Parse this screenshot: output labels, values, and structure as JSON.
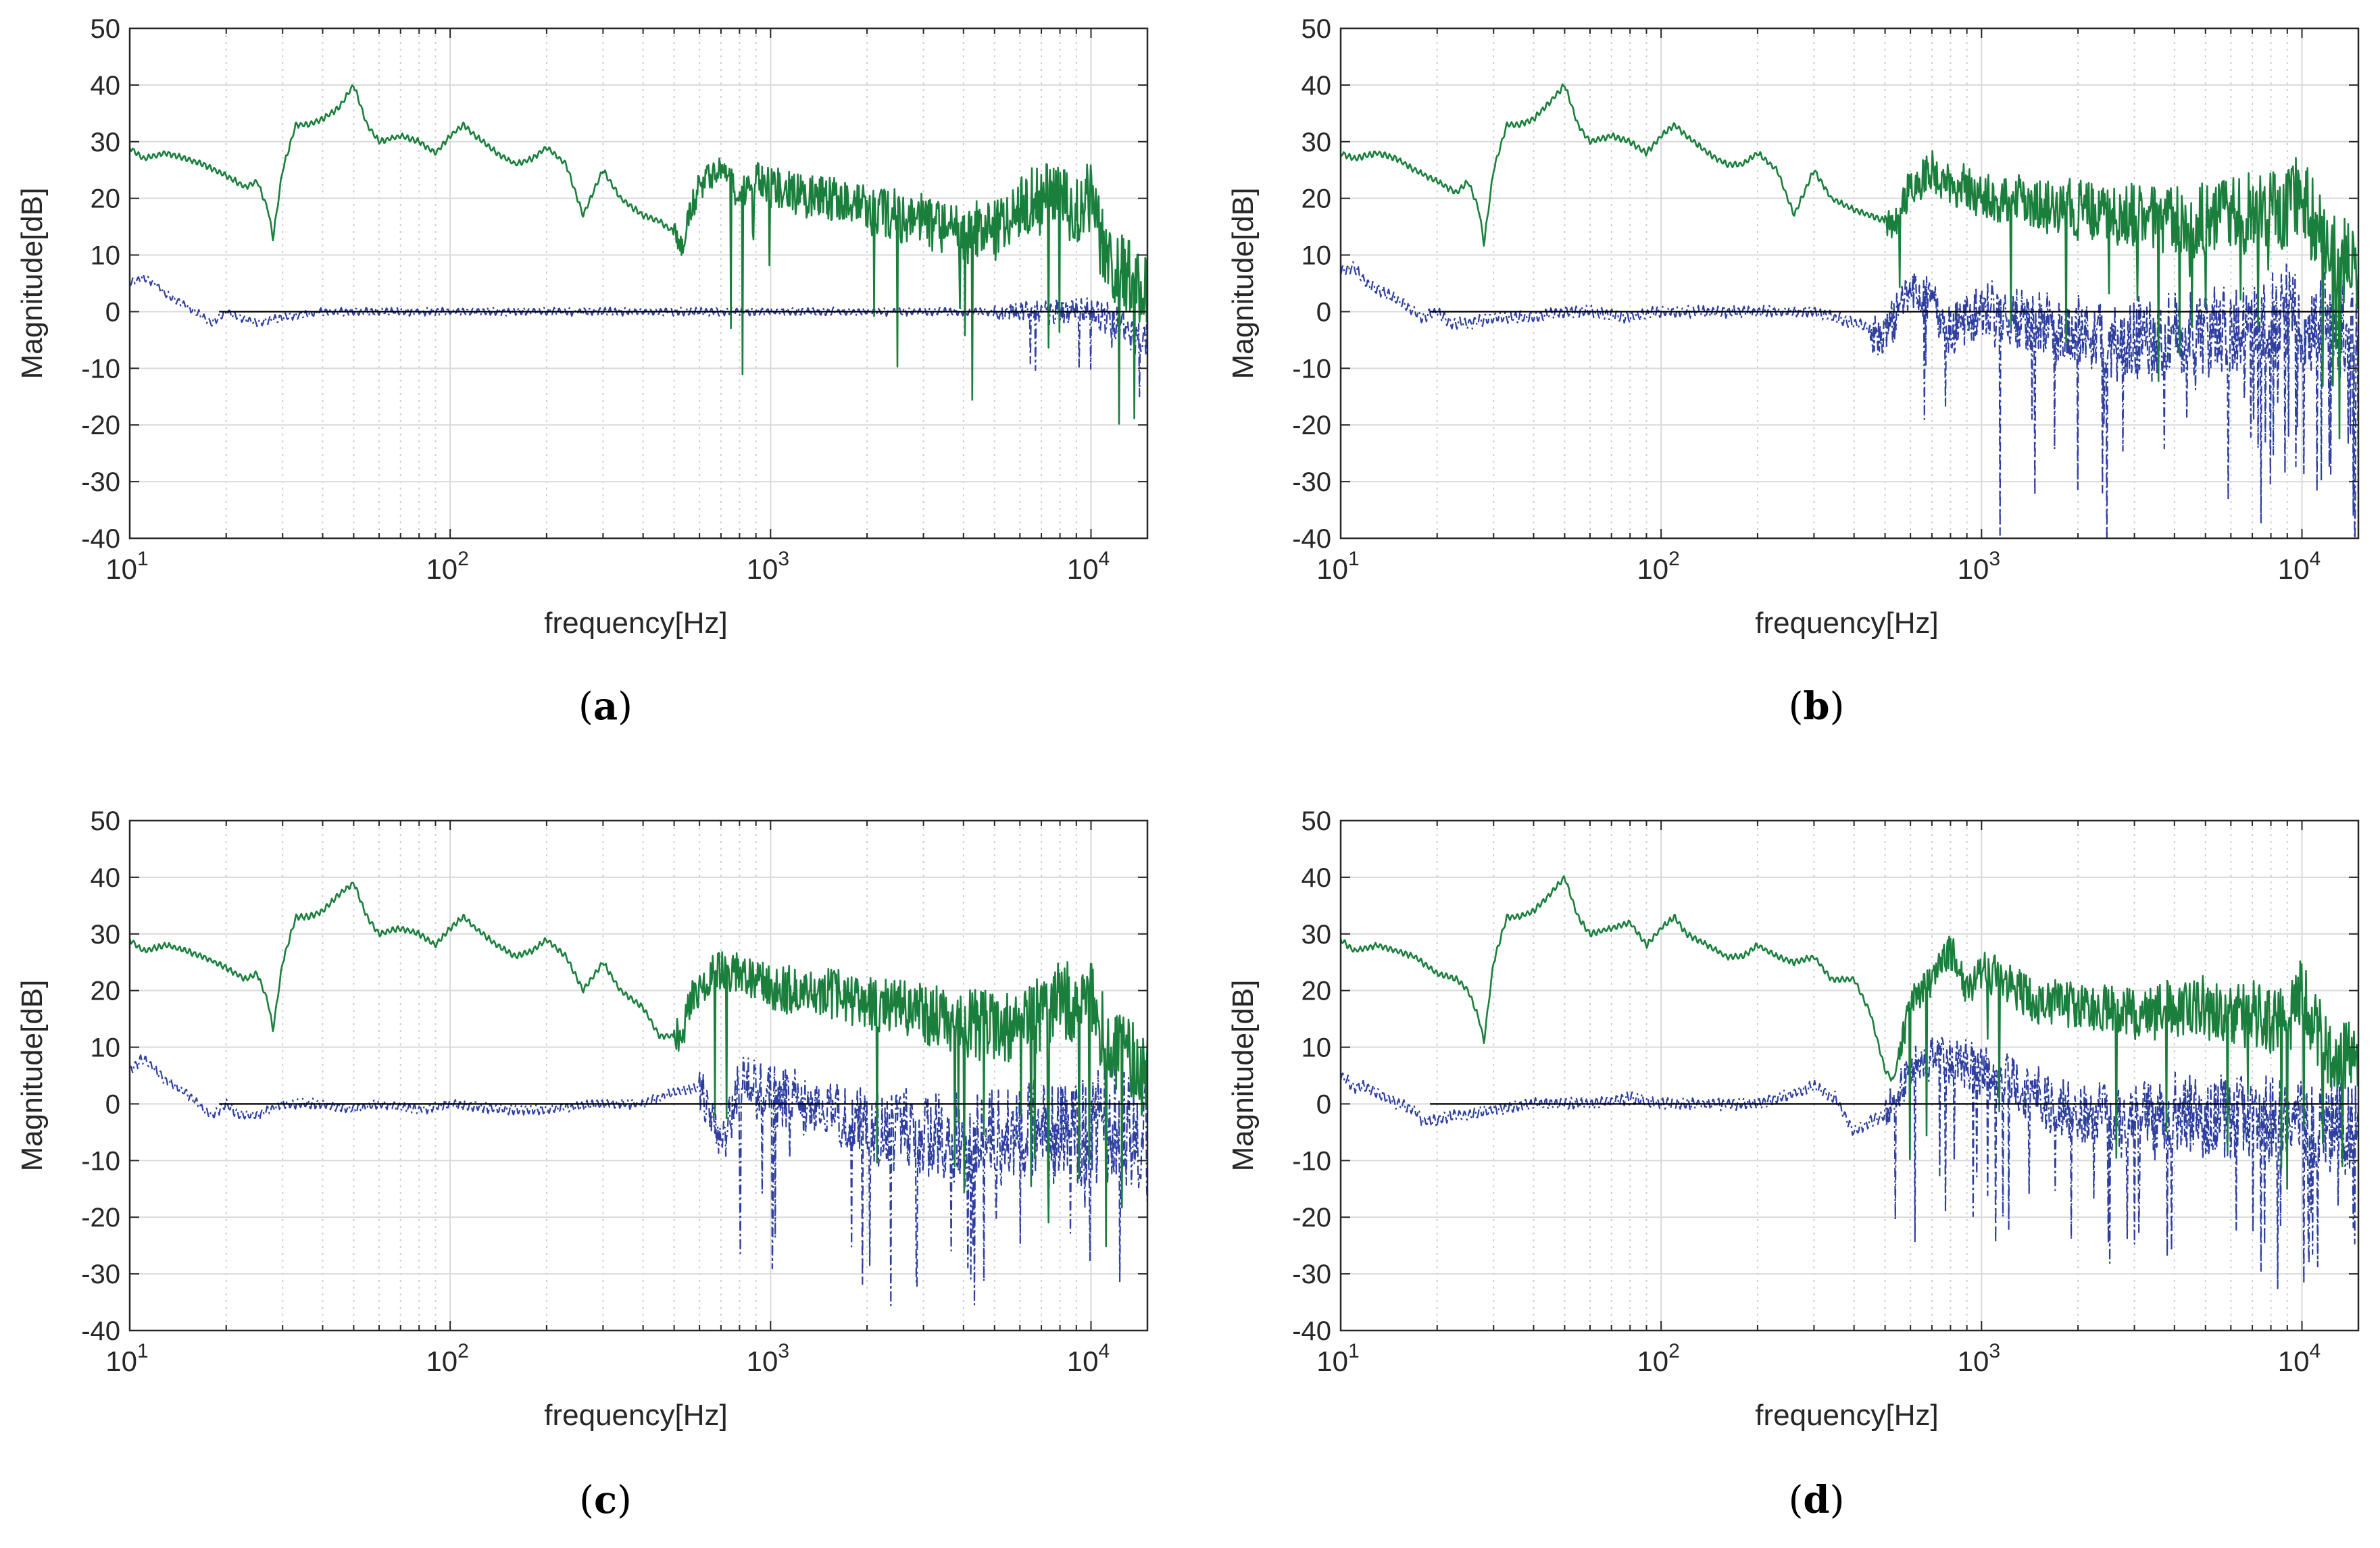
{
  "colors": {
    "green": "#1a7f3c",
    "blue": "#2e3fa0",
    "zero_line": "#000000",
    "grid_major": "#d9d9d9",
    "grid_minor": "#cfcfcf",
    "axes": "#262626"
  },
  "chart_data": [
    {
      "panel": "a",
      "type": "line",
      "caption_letter": "a",
      "xlabel": "frequency[Hz]",
      "ylabel": "Magnitude[dB]",
      "xscale": "log",
      "xlim": [
        10,
        15000
      ],
      "ylim": [
        -40,
        50
      ],
      "yticks": [
        -40,
        -30,
        -20,
        -10,
        0,
        10,
        20,
        30,
        40,
        50
      ],
      "xtick_labels": [
        {
          "base": "10",
          "exp": "1"
        },
        {
          "base": "10",
          "exp": "2"
        },
        {
          "base": "10",
          "exp": "3"
        },
        {
          "base": "10",
          "exp": "4"
        }
      ],
      "grid": true,
      "zero_line_x_start": 19,
      "series": [
        {
          "name": "green",
          "style": "solid",
          "seed": 11,
          "osc": 0.15,
          "x": [
            10,
            11,
            13,
            15,
            17,
            20,
            23,
            25,
            27,
            28,
            30,
            33,
            36,
            40,
            45,
            50,
            55,
            60,
            70,
            80,
            90,
            100,
            110,
            120,
            140,
            160,
            180,
            200,
            230,
            260,
            300,
            340,
            400,
            450,
            500,
            530,
            560,
            600,
            700,
            800,
            900,
            1000,
            1500,
            2000,
            3000,
            4000,
            5000,
            6000,
            7000,
            8000,
            9000,
            10000,
            11000,
            12000,
            14000
          ],
          "y": [
            29,
            27,
            28,
            27,
            26,
            24,
            22,
            23,
            18,
            13,
            25,
            33,
            33,
            34,
            36,
            40,
            33,
            30,
            31,
            30,
            28,
            31,
            33,
            31,
            28,
            26,
            27,
            29,
            26,
            17,
            25,
            20,
            17,
            16,
            14,
            12,
            18,
            22,
            25,
            21,
            23,
            22,
            20,
            18,
            16,
            14,
            14,
            18,
            20,
            20,
            18,
            20,
            10,
            8,
            5
          ],
          "noise_start": 500,
          "amp_max": 7,
          "dip_prob": 0.03,
          "dip_depth": 22
        },
        {
          "name": "blue",
          "style": "dashdot",
          "seed": 22,
          "osc": 0.2,
          "x": [
            10,
            11,
            12,
            13,
            14,
            15,
            17,
            18,
            20,
            22,
            25,
            30,
            40,
            50,
            60,
            80,
            100,
            150,
            200,
            300,
            500,
            700,
            1000,
            2000,
            4000,
            8000,
            10000,
            12000,
            14000
          ],
          "y": [
            5,
            6,
            5,
            3,
            2,
            1,
            -1,
            -2,
            0,
            -1,
            -2,
            -1,
            0,
            0,
            0,
            0,
            0,
            0,
            0,
            0,
            0,
            0,
            0,
            0,
            0,
            0,
            0,
            -2,
            -5
          ],
          "noise_start": 5000,
          "amp_max": 3,
          "dip_prob": 0.01,
          "dip_depth": 10
        }
      ]
    },
    {
      "panel": "b",
      "type": "line",
      "caption_letter": "b",
      "xlabel": "frequency[Hz]",
      "ylabel": "Magnitude[dB]",
      "xscale": "log",
      "xlim": [
        10,
        15000
      ],
      "ylim": [
        -40,
        50
      ],
      "yticks": [
        -40,
        -30,
        -20,
        -10,
        0,
        10,
        20,
        30,
        40,
        50
      ],
      "xtick_labels": [
        {
          "base": "10",
          "exp": "1"
        },
        {
          "base": "10",
          "exp": "2"
        },
        {
          "base": "10",
          "exp": "3"
        },
        {
          "base": "10",
          "exp": "4"
        }
      ],
      "grid": true,
      "zero_line_x_start": 19,
      "series": [
        {
          "name": "green",
          "style": "solid",
          "seed": 33,
          "osc": 0.15,
          "x": [
            10,
            11,
            13,
            15,
            17,
            20,
            23,
            25,
            27,
            28,
            30,
            33,
            36,
            40,
            45,
            50,
            55,
            60,
            70,
            80,
            90,
            100,
            110,
            120,
            140,
            160,
            180,
            200,
            230,
            260,
            300,
            340,
            400,
            450,
            500,
            530,
            560,
            600,
            700,
            800,
            900,
            1000,
            1500,
            2000,
            3000,
            4000,
            5000,
            6000,
            7000,
            8000,
            9000,
            10000,
            11000,
            12000,
            14000
          ],
          "y": [
            28,
            27,
            28,
            27,
            25,
            23,
            21,
            23,
            18,
            12,
            25,
            33,
            33,
            34,
            37,
            40,
            33,
            30,
            31,
            30,
            28,
            31,
            33,
            31,
            28,
            26,
            26,
            28,
            25,
            17,
            25,
            20,
            18,
            17,
            16,
            14,
            18,
            22,
            25,
            22,
            22,
            20,
            19,
            18,
            17,
            16,
            16,
            17,
            18,
            18,
            18,
            22,
            15,
            10,
            8
          ],
          "noise_start": 500,
          "amp_max": 8,
          "dip_prob": 0.025,
          "dip_depth": 20
        },
        {
          "name": "blue",
          "style": "dashdot",
          "seed": 44,
          "osc": 0.3,
          "x": [
            10,
            11,
            12,
            13,
            14,
            15,
            17,
            18,
            20,
            22,
            25,
            30,
            40,
            50,
            60,
            80,
            100,
            150,
            200,
            300,
            400,
            500,
            600,
            700,
            800,
            1000,
            2000,
            3000,
            4000,
            6000,
            8000,
            10000,
            12000,
            14000
          ],
          "y": [
            7,
            8,
            5,
            4,
            3,
            2,
            0,
            -1,
            0,
            -2,
            -2,
            -1,
            -1,
            0,
            0,
            -1,
            0,
            0,
            0,
            0,
            -2,
            -4,
            4,
            2,
            -3,
            0,
            -4,
            -5,
            -4,
            -3,
            -2,
            -1,
            -2,
            -3
          ],
          "noise_start": 450,
          "amp_max": 10,
          "dip_prob": 0.06,
          "dip_depth": 22
        }
      ]
    },
    {
      "panel": "c",
      "type": "line",
      "caption_letter": "c",
      "xlabel": "frequency[Hz]",
      "ylabel": "Magnitude[dB]",
      "xscale": "log",
      "xlim": [
        10,
        15000
      ],
      "ylim": [
        -40,
        50
      ],
      "yticks": [
        -40,
        -30,
        -20,
        -10,
        0,
        10,
        20,
        30,
        40,
        50
      ],
      "xtick_labels": [
        {
          "base": "10",
          "exp": "1"
        },
        {
          "base": "10",
          "exp": "2"
        },
        {
          "base": "10",
          "exp": "3"
        },
        {
          "base": "10",
          "exp": "4"
        }
      ],
      "grid": true,
      "zero_line_x_start": 19,
      "series": [
        {
          "name": "green",
          "style": "solid",
          "seed": 55,
          "osc": 0.15,
          "x": [
            10,
            11,
            13,
            15,
            17,
            20,
            23,
            25,
            27,
            28,
            30,
            33,
            36,
            40,
            45,
            50,
            55,
            60,
            70,
            80,
            90,
            100,
            110,
            120,
            140,
            160,
            180,
            200,
            230,
            260,
            300,
            340,
            400,
            450,
            500,
            530,
            560,
            600,
            700,
            800,
            900,
            1000,
            1500,
            2000,
            3000,
            4000,
            5000,
            6000,
            7000,
            8000,
            9000,
            10000,
            11000,
            12000,
            14000
          ],
          "y": [
            29,
            27,
            28,
            27,
            26,
            24,
            22,
            23,
            18,
            13,
            25,
            33,
            33,
            34,
            37,
            39,
            33,
            30,
            31,
            30,
            28,
            31,
            33,
            31,
            28,
            26,
            27,
            29,
            26,
            20,
            25,
            20,
            17,
            12,
            12,
            12,
            18,
            20,
            24,
            23,
            22,
            20,
            20,
            18,
            16,
            14,
            14,
            14,
            16,
            18,
            17,
            18,
            12,
            10,
            6
          ],
          "noise_start": 500,
          "amp_max": 8,
          "dip_prob": 0.02,
          "dip_depth": 25
        },
        {
          "name": "blue",
          "style": "dashdot",
          "seed": 66,
          "osc": 0.25,
          "x": [
            10,
            11,
            12,
            13,
            14,
            15,
            17,
            18,
            20,
            22,
            25,
            30,
            40,
            50,
            60,
            80,
            100,
            150,
            200,
            300,
            400,
            500,
            600,
            700,
            800,
            1000,
            2000,
            3000,
            4000,
            6000,
            8000,
            10000,
            12000,
            14000
          ],
          "y": [
            6,
            8,
            6,
            4,
            3,
            2,
            -1,
            -2,
            0,
            -2,
            -2,
            0,
            0,
            -1,
            0,
            -1,
            0,
            -1,
            -1,
            0,
            0,
            2,
            3,
            -8,
            4,
            2,
            -4,
            -5,
            -6,
            -5,
            -5,
            -4,
            -3,
            -6
          ],
          "noise_start": 600,
          "amp_max": 11,
          "dip_prob": 0.06,
          "dip_depth": 22
        }
      ]
    },
    {
      "panel": "d",
      "type": "line",
      "caption_letter": "d",
      "xlabel": "frequency[Hz]",
      "ylabel": "Magnitude[dB]",
      "xscale": "log",
      "xlim": [
        10,
        15000
      ],
      "ylim": [
        -40,
        50
      ],
      "yticks": [
        -40,
        -30,
        -20,
        -10,
        0,
        10,
        20,
        30,
        40,
        50
      ],
      "xtick_labels": [
        {
          "base": "10",
          "exp": "1"
        },
        {
          "base": "10",
          "exp": "2"
        },
        {
          "base": "10",
          "exp": "3"
        },
        {
          "base": "10",
          "exp": "4"
        }
      ],
      "grid": true,
      "zero_line_x_start": 19,
      "series": [
        {
          "name": "green",
          "style": "solid",
          "seed": 77,
          "osc": 0.15,
          "x": [
            10,
            11,
            13,
            15,
            17,
            20,
            23,
            25,
            27,
            28,
            30,
            33,
            36,
            40,
            45,
            50,
            55,
            60,
            70,
            80,
            90,
            100,
            110,
            120,
            140,
            160,
            180,
            200,
            230,
            260,
            300,
            340,
            400,
            450,
            500,
            530,
            560,
            600,
            700,
            800,
            900,
            1000,
            1500,
            2000,
            3000,
            4000,
            5000,
            6000,
            7000,
            8000,
            9000,
            10000,
            11000,
            12000,
            14000
          ],
          "y": [
            29,
            27,
            28,
            27,
            26,
            23,
            22,
            20,
            15,
            11,
            25,
            33,
            33,
            34,
            37,
            40,
            33,
            30,
            31,
            32,
            28,
            31,
            33,
            30,
            28,
            26,
            26,
            28,
            26,
            25,
            26,
            22,
            22,
            16,
            6,
            4,
            10,
            18,
            22,
            27,
            20,
            24,
            18,
            17,
            16,
            17,
            17,
            16,
            16,
            15,
            15,
            20,
            14,
            10,
            8
          ],
          "noise_start": 550,
          "amp_max": 7,
          "dip_prob": 0.02,
          "dip_depth": 20
        },
        {
          "name": "blue",
          "style": "dashdot",
          "seed": 88,
          "osc": 0.3,
          "x": [
            10,
            11,
            12,
            13,
            14,
            15,
            17,
            18,
            20,
            22,
            25,
            30,
            40,
            50,
            60,
            80,
            100,
            150,
            200,
            300,
            350,
            400,
            450,
            500,
            600,
            700,
            800,
            1000,
            2000,
            3000,
            4000,
            6000,
            8000,
            10000,
            12000,
            14000
          ],
          "y": [
            5,
            3,
            3,
            2,
            1,
            0,
            -1,
            -3,
            -3,
            -2,
            -2,
            -1,
            0,
            0,
            0,
            1,
            0,
            0,
            0,
            3,
            1,
            -5,
            -3,
            -2,
            6,
            8,
            8,
            6,
            -2,
            -3,
            -2,
            -3,
            -3,
            -3,
            -3,
            -3
          ],
          "noise_start": 500,
          "amp_max": 9,
          "dip_prob": 0.05,
          "dip_depth": 20
        }
      ]
    }
  ]
}
